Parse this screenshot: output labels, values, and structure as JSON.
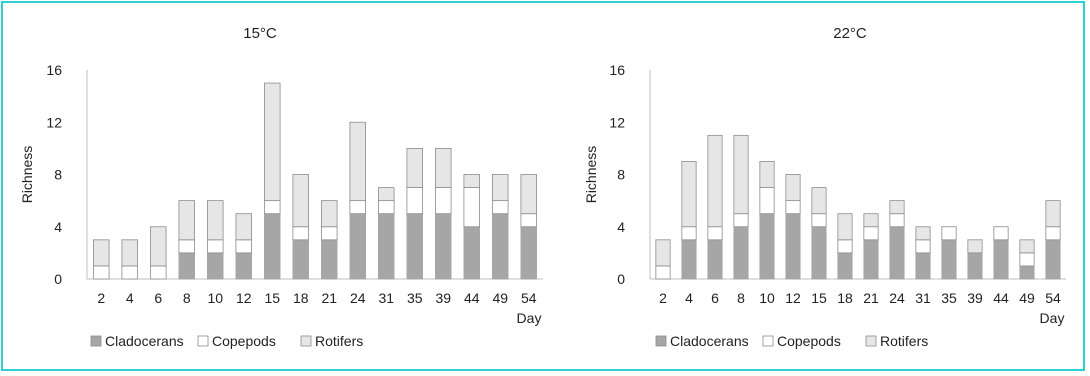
{
  "legend": {
    "items": [
      {
        "key": "cladocerans",
        "label": "Cladocerans"
      },
      {
        "key": "copepods",
        "label": "Copepods"
      },
      {
        "key": "rotifers",
        "label": "Rotifers"
      }
    ]
  },
  "colors": {
    "cladocerans": "#a6a6a6",
    "copepods": "#ffffff",
    "rotifers": "#e6e6e6",
    "frame": "#2fd0d0"
  },
  "chart_data": [
    {
      "type": "bar",
      "stacked": true,
      "title": "15°C",
      "xlabel": "Day",
      "ylabel": "Richness",
      "ylim": [
        0,
        16
      ],
      "yticks": [
        0,
        4,
        8,
        12,
        16
      ],
      "legend_position": "bottom",
      "grid": false,
      "categories": [
        "2",
        "4",
        "6",
        "8",
        "10",
        "12",
        "15",
        "18",
        "21",
        "24",
        "31",
        "35",
        "39",
        "44",
        "49",
        "54"
      ],
      "series": [
        {
          "name": "Cladocerans",
          "values": [
            0,
            0,
            0,
            2,
            2,
            2,
            5,
            3,
            3,
            5,
            5,
            5,
            5,
            4,
            5,
            4
          ]
        },
        {
          "name": "Copepods",
          "values": [
            1,
            1,
            1,
            1,
            1,
            1,
            1,
            1,
            1,
            1,
            1,
            2,
            2,
            3,
            1,
            1
          ]
        },
        {
          "name": "Rotifers",
          "values": [
            2,
            2,
            3,
            3,
            3,
            2,
            9,
            4,
            2,
            6,
            1,
            3,
            3,
            1,
            2,
            3
          ]
        }
      ]
    },
    {
      "type": "bar",
      "stacked": true,
      "title": "22°C",
      "xlabel": "Day",
      "ylabel": "Richness",
      "ylim": [
        0,
        16
      ],
      "yticks": [
        0,
        4,
        8,
        12,
        16
      ],
      "legend_position": "bottom",
      "grid": false,
      "categories": [
        "2",
        "4",
        "6",
        "8",
        "10",
        "12",
        "15",
        "18",
        "21",
        "24",
        "31",
        "35",
        "39",
        "44",
        "49",
        "54"
      ],
      "series": [
        {
          "name": "Cladocerans",
          "values": [
            0,
            3,
            3,
            4,
            5,
            5,
            4,
            2,
            3,
            4,
            2,
            3,
            2,
            3,
            1,
            3
          ]
        },
        {
          "name": "Copepods",
          "values": [
            1,
            1,
            1,
            1,
            2,
            1,
            1,
            1,
            1,
            1,
            1,
            1,
            0,
            1,
            1,
            1
          ]
        },
        {
          "name": "Rotifers",
          "values": [
            2,
            5,
            7,
            6,
            2,
            2,
            2,
            2,
            1,
            1,
            1,
            0,
            1,
            0,
            1,
            2
          ]
        }
      ]
    }
  ]
}
